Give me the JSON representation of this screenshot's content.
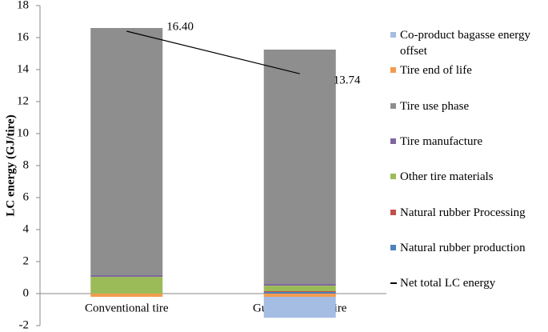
{
  "chart_data": {
    "type": "bar",
    "stacked": true,
    "y_label": "LC energy (GJ/tire)",
    "categories": [
      "Conventional tire",
      "Guayule rubber tire"
    ],
    "ylim": [
      -2,
      18
    ],
    "yticks": [
      -2,
      0,
      2,
      4,
      6,
      8,
      10,
      12,
      14,
      16,
      18
    ],
    "series": [
      {
        "name": "Co-product bagasse energy offset",
        "color": "#a5bde3",
        "values": [
          0,
          -1.31
        ]
      },
      {
        "name": "Tire end of life",
        "color": "#f39c4e",
        "values": [
          -0.2,
          -0.2
        ]
      },
      {
        "name": "Tire use phase",
        "color": "#8e8e8e",
        "values": [
          15.45,
          14.65
        ]
      },
      {
        "name": "Tire manufacture",
        "color": "#8066a0",
        "values": [
          0.1,
          0.1
        ]
      },
      {
        "name": "Other tire materials",
        "color": "#9bbb59",
        "values": [
          1.05,
          0.35
        ]
      },
      {
        "name": "Natural rubber Processing",
        "color": "#c0504d",
        "values": [
          0,
          0.05
        ]
      },
      {
        "name": "Natural rubber production",
        "color": "#4f81bd",
        "values": [
          0,
          0.1
        ]
      },
      {
        "name": "Net total LC energy",
        "color": "#000000",
        "type": "line",
        "values": [
          16.4,
          13.74
        ],
        "value_labels": [
          "16.40",
          "13.74"
        ]
      }
    ]
  }
}
